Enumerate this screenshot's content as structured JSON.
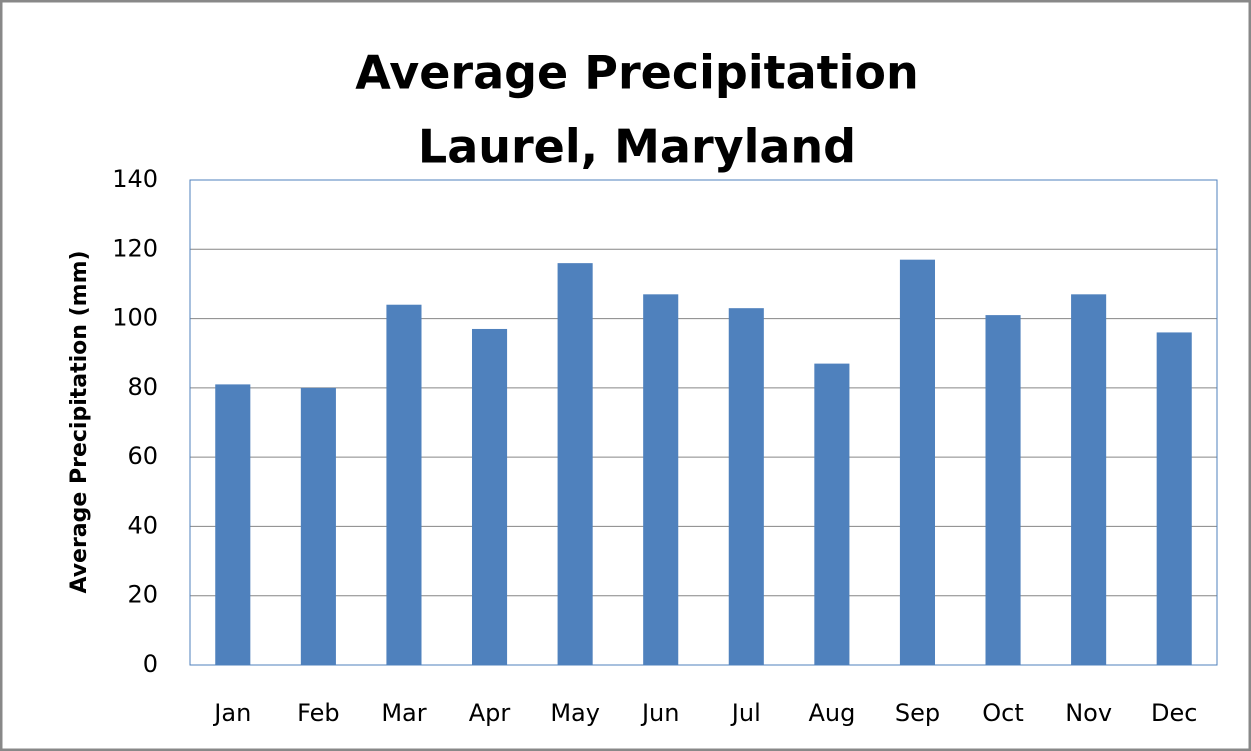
{
  "chart_data": {
    "type": "bar",
    "title": [
      "Average Precipitation",
      "Laurel, Maryland"
    ],
    "y_label": "Average Precipitation (mm)",
    "categories": [
      "Jan",
      "Feb",
      "Mar",
      "Apr",
      "May",
      "Jun",
      "Jul",
      "Aug",
      "Sep",
      "Oct",
      "Nov",
      "Dec"
    ],
    "values": [
      81,
      80,
      104,
      97,
      116,
      107,
      103,
      87,
      117,
      101,
      107,
      96
    ],
    "color": "#4f81bd",
    "ylim": [
      0,
      140
    ],
    "yticks": [
      0,
      20,
      40,
      60,
      80,
      100,
      120,
      140
    ],
    "grid": true
  }
}
